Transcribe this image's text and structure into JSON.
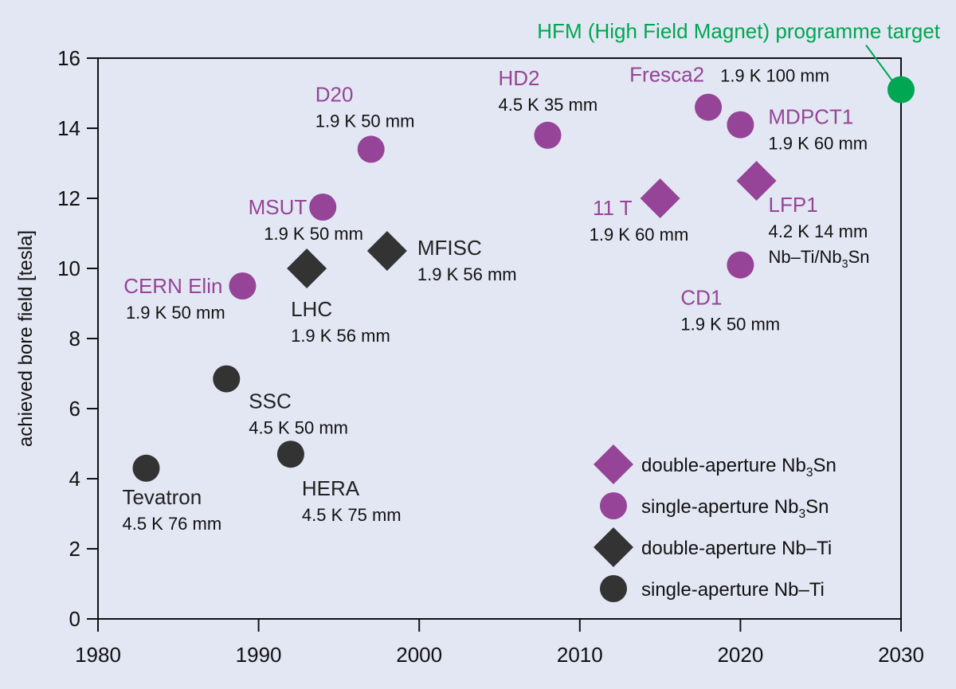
{
  "chart_data": {
    "type": "scatter",
    "title": "",
    "xlabel": "",
    "ylabel": "achieved bore field [tesla]",
    "xlim": [
      1980,
      2030
    ],
    "ylim": [
      0,
      16
    ],
    "xticks": [
      1980,
      1990,
      2000,
      2010,
      2020,
      2030
    ],
    "yticks": [
      0,
      2,
      4,
      6,
      8,
      10,
      12,
      14,
      16
    ],
    "grid": false,
    "legend_position": "bottom-right",
    "colors": {
      "nb3sn": "#954497",
      "nbti": "#333333",
      "target": "#00a651",
      "axis": "#111111",
      "background": "#e3e7f3"
    },
    "series": [
      {
        "name": "double-aperture Nb3Sn",
        "label_main": "double-aperture Nb",
        "label_sub": "3",
        "label_tail": "Sn",
        "marker": "diamond",
        "color": "#954497"
      },
      {
        "name": "single-aperture Nb3Sn",
        "label_main": "single-aperture Nb",
        "label_sub": "3",
        "label_tail": "Sn",
        "marker": "circle",
        "color": "#954497"
      },
      {
        "name": "double-aperture Nb-Ti",
        "label_main": "double-aperture Nb–Ti",
        "label_sub": "",
        "label_tail": "",
        "marker": "diamond",
        "color": "#333333"
      },
      {
        "name": "single-aperture Nb-Ti",
        "label_main": "single-aperture Nb–Ti",
        "label_sub": "",
        "label_tail": "",
        "marker": "circle",
        "color": "#333333"
      }
    ],
    "points": [
      {
        "name": "Tevatron",
        "spec": "4.5 K 76 mm",
        "x": 1983,
        "y": 4.3,
        "series": 3
      },
      {
        "name": "SSC",
        "spec": "4.5 K 50 mm",
        "x": 1988,
        "y": 6.85,
        "series": 3
      },
      {
        "name": "HERA",
        "spec": "4.5 K 75 mm",
        "x": 1992,
        "y": 4.7,
        "series": 3
      },
      {
        "name": "CERN Elin",
        "spec": "1.9 K 50 mm",
        "x": 1989,
        "y": 9.5,
        "series": 1
      },
      {
        "name": "LHC",
        "spec": "1.9 K 56 mm",
        "x": 1993,
        "y": 10.0,
        "series": 2
      },
      {
        "name": "MSUT",
        "spec": "1.9 K 50 mm",
        "x": 1994,
        "y": 11.75,
        "series": 1
      },
      {
        "name": "MFISC",
        "spec": "1.9 K 56 mm",
        "x": 1998,
        "y": 10.5,
        "series": 2
      },
      {
        "name": "D20",
        "spec": "1.9 K 50 mm",
        "x": 1997,
        "y": 13.4,
        "series": 1
      },
      {
        "name": "HD2",
        "spec": "4.5 K 35 mm",
        "x": 2008,
        "y": 13.8,
        "series": 1
      },
      {
        "name": "11 T",
        "spec": "1.9 K 60 mm",
        "x": 2015,
        "y": 12.0,
        "series": 0
      },
      {
        "name": "Fresca2",
        "spec": "1.9 K 100 mm",
        "x": 2018,
        "y": 14.6,
        "series": 1
      },
      {
        "name": "MDPCT1",
        "spec": "1.9 K 60 mm",
        "x": 2020,
        "y": 14.1,
        "series": 1
      },
      {
        "name": "LFP1",
        "spec": "4.2 K 14 mm",
        "spec2_main": "Nb–Ti/Nb",
        "spec2_sub": "3",
        "spec2_tail": "Sn",
        "x": 2021,
        "y": 12.5,
        "series": 0
      },
      {
        "name": "CD1",
        "spec": "1.9 K 50 mm",
        "x": 2020,
        "y": 10.1,
        "series": 1
      }
    ],
    "target": {
      "name": "HFM (High Field Magnet) programme target",
      "x": 2030,
      "y": 15.1
    }
  }
}
